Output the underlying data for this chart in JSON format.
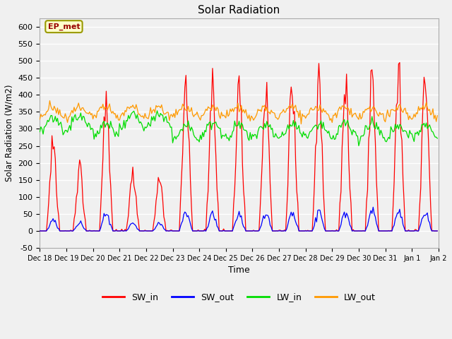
{
  "title": "Solar Radiation",
  "xlabel": "Time",
  "ylabel": "Solar Radiation (W/m2)",
  "annotation_text": "EP_met",
  "annotation_fc": "#ffffcc",
  "annotation_ec": "#999900",
  "annotation_tc": "#990000",
  "ylim": [
    -50,
    625
  ],
  "yticks": [
    -50,
    0,
    50,
    100,
    150,
    200,
    250,
    300,
    350,
    400,
    450,
    500,
    550,
    600
  ],
  "colors": {
    "SW_in": "#ff0000",
    "SW_out": "#0000ff",
    "LW_in": "#00dd00",
    "LW_out": "#ff9900"
  },
  "bg_color": "#f0f0f0",
  "grid_color": "#ffffff",
  "n_days": 15,
  "start_day": 18,
  "seed": 42
}
